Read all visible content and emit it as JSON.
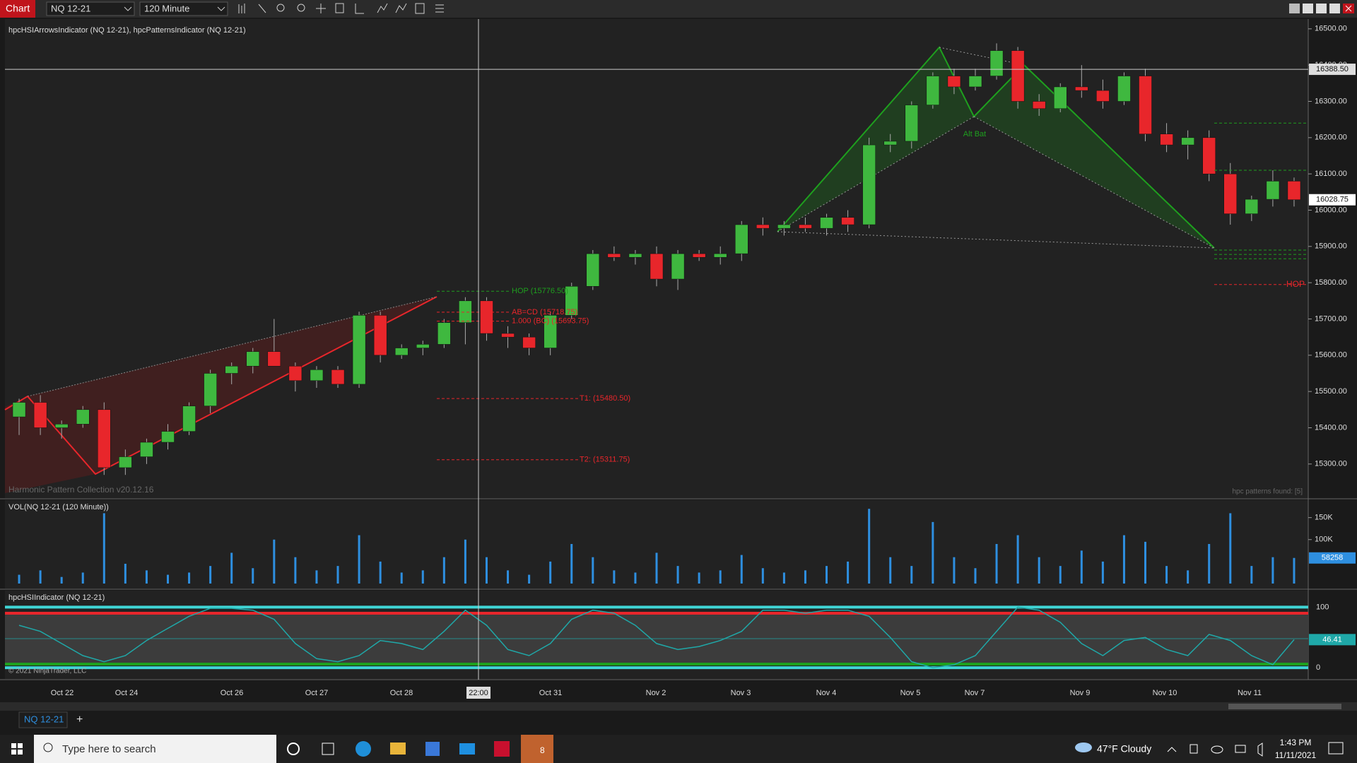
{
  "toolbar": {
    "title": "Chart",
    "instrument": "NQ 12-21",
    "interval": "120 Minute"
  },
  "price_panel": {
    "type": "candlestick",
    "title": "hpcHSIArrowsIndicator (NQ 12-21), hpcPatternsIndicator (NQ 12-21)",
    "up_color": "#3fb83f",
    "down_color": "#e8262b",
    "candles": [
      [
        15430,
        15480,
        15380,
        15470
      ],
      [
        15470,
        15490,
        15380,
        15400
      ],
      [
        15400,
        15420,
        15370,
        15410
      ],
      [
        15410,
        15460,
        15400,
        15450
      ],
      [
        15450,
        15470,
        15270,
        15290
      ],
      [
        15290,
        15340,
        15270,
        15320
      ],
      [
        15320,
        15370,
        15300,
        15360
      ],
      [
        15360,
        15410,
        15340,
        15390
      ],
      [
        15390,
        15470,
        15380,
        15460
      ],
      [
        15460,
        15560,
        15440,
        15550
      ],
      [
        15550,
        15580,
        15520,
        15570
      ],
      [
        15570,
        15620,
        15550,
        15610
      ],
      [
        15610,
        15700,
        15580,
        15570
      ],
      [
        15570,
        15580,
        15500,
        15530
      ],
      [
        15530,
        15570,
        15510,
        15560
      ],
      [
        15560,
        15570,
        15510,
        15520
      ],
      [
        15520,
        15720,
        15510,
        15710
      ],
      [
        15710,
        15720,
        15580,
        15600
      ],
      [
        15600,
        15630,
        15590,
        15620
      ],
      [
        15620,
        15640,
        15600,
        15630
      ],
      [
        15630,
        15700,
        15620,
        15690
      ],
      [
        15690,
        15760,
        15630,
        15750
      ],
      [
        15750,
        15760,
        15640,
        15660
      ],
      [
        15660,
        15680,
        15620,
        15650
      ],
      [
        15650,
        15660,
        15600,
        15620
      ],
      [
        15620,
        15720,
        15600,
        15710
      ],
      [
        15710,
        15800,
        15700,
        15790
      ],
      [
        15790,
        15890,
        15780,
        15880
      ],
      [
        15880,
        15900,
        15860,
        15870
      ],
      [
        15870,
        15890,
        15850,
        15880
      ],
      [
        15880,
        15900,
        15790,
        15810
      ],
      [
        15810,
        15890,
        15780,
        15880
      ],
      [
        15880,
        15890,
        15860,
        15870
      ],
      [
        15870,
        15900,
        15850,
        15880
      ],
      [
        15880,
        15970,
        15860,
        15960
      ],
      [
        15960,
        15980,
        15930,
        15950
      ],
      [
        15950,
        15970,
        15930,
        15960
      ],
      [
        15960,
        15980,
        15940,
        15950
      ],
      [
        15950,
        15990,
        15930,
        15980
      ],
      [
        15980,
        16000,
        15940,
        15960
      ],
      [
        15960,
        16200,
        15950,
        16180
      ],
      [
        16180,
        16210,
        16160,
        16190
      ],
      [
        16190,
        16300,
        16170,
        16290
      ],
      [
        16290,
        16380,
        16280,
        16370
      ],
      [
        16370,
        16390,
        16320,
        16340
      ],
      [
        16340,
        16390,
        16330,
        16370
      ],
      [
        16370,
        16460,
        16360,
        16440
      ],
      [
        16440,
        16450,
        16280,
        16300
      ],
      [
        16300,
        16320,
        16260,
        16280
      ],
      [
        16280,
        16350,
        16270,
        16340
      ],
      [
        16340,
        16400,
        16310,
        16330
      ],
      [
        16330,
        16360,
        16280,
        16300
      ],
      [
        16300,
        16380,
        16290,
        16370
      ],
      [
        16370,
        16390,
        16190,
        16210
      ],
      [
        16210,
        16240,
        16160,
        16180
      ],
      [
        16180,
        16220,
        16140,
        16200
      ],
      [
        16200,
        16220,
        16080,
        16100
      ],
      [
        16100,
        16130,
        15960,
        15990
      ],
      [
        15990,
        16040,
        15970,
        16030
      ],
      [
        16030,
        16110,
        16010,
        16080
      ],
      [
        16080,
        16090,
        16010,
        16028.75
      ]
    ],
    "ylim": [
      15210,
      16525
    ],
    "yticks": [
      {
        "value": 15300,
        "label": "15300.00"
      },
      {
        "value": 15400,
        "label": "15400.00"
      },
      {
        "value": 15500,
        "label": "15500.00"
      },
      {
        "value": 15600,
        "label": "15600.00"
      },
      {
        "value": 15700,
        "label": "15700.00"
      },
      {
        "value": 15800,
        "label": "15800.00"
      },
      {
        "value": 15900,
        "label": "15900.00"
      },
      {
        "value": 16000,
        "label": "16000.00"
      },
      {
        "value": 16100,
        "label": "16100.00"
      },
      {
        "value": 16200,
        "label": "16200.00"
      },
      {
        "value": 16300,
        "label": "16300.00"
      },
      {
        "value": 16400,
        "label": "16400.00"
      },
      {
        "value": 16500,
        "label": "16500.00"
      }
    ],
    "crosshair": {
      "value": 16388.5,
      "label": "16388.50"
    },
    "last": 16028.75,
    "levels": [
      {
        "label": "HOP (15776.50)",
        "value": 15776.5,
        "color": "#1e9e1e"
      },
      {
        "label": "AB=CD (15718.75)",
        "value": 15718.75,
        "color": "#e8262b"
      },
      {
        "label": "1.000 (BC) (15693.75)",
        "value": 15693.75,
        "color": "#e8262b"
      },
      {
        "label": "T1: (15480.50)",
        "value": 15480.5,
        "color": "#e8262b"
      },
      {
        "label": "T2: (15311.75)",
        "value": 15311.75,
        "color": "#e8262b"
      }
    ],
    "right_levels": [
      {
        "value": 16240,
        "color": "#1e9e1e"
      },
      {
        "value": 16110,
        "color": "#1e9e1e"
      },
      {
        "value": 15890,
        "color": "#1e9e1e"
      },
      {
        "value": 15878,
        "color": "#1e9e1e"
      },
      {
        "value": 15866,
        "color": "#1e9e1e"
      },
      {
        "value": 15795,
        "color": "#e8262b",
        "label": "HOP"
      }
    ],
    "pattern_name": "Alt Bat",
    "footer": "Harmonic Pattern Collection v20.12.16",
    "patterns_found": "hpc patterns found: [5]"
  },
  "volume_panel": {
    "type": "bar",
    "title": "VOL(NQ 12-21 (120 Minute))",
    "color": "#2e8fe0",
    "values": [
      20000,
      30000,
      15000,
      25000,
      160000,
      45000,
      30000,
      20000,
      25000,
      40000,
      70000,
      35000,
      100000,
      60000,
      30000,
      40000,
      110000,
      50000,
      25000,
      30000,
      60000,
      100000,
      60000,
      30000,
      20000,
      50000,
      90000,
      60000,
      30000,
      25000,
      70000,
      40000,
      25000,
      30000,
      65000,
      35000,
      25000,
      30000,
      40000,
      50000,
      170000,
      60000,
      40000,
      140000,
      60000,
      35000,
      90000,
      110000,
      60000,
      40000,
      75000,
      50000,
      110000,
      95000,
      40000,
      30000,
      90000,
      160000,
      40000,
      60000,
      58258
    ],
    "ylim": [
      0,
      180000
    ],
    "yticks": [
      {
        "value": 100000,
        "label": "100K"
      },
      {
        "value": 150000,
        "label": "150K"
      }
    ],
    "last": 58258
  },
  "oscillator_panel": {
    "type": "line",
    "title": "hpcHSIIndicator (NQ 12-21)",
    "color": "#1fa8a8",
    "values": [
      70,
      60,
      40,
      20,
      10,
      20,
      45,
      65,
      85,
      98,
      98,
      95,
      80,
      40,
      15,
      10,
      20,
      45,
      40,
      30,
      60,
      95,
      70,
      30,
      20,
      40,
      80,
      95,
      90,
      70,
      40,
      30,
      35,
      45,
      60,
      95,
      95,
      90,
      95,
      95,
      85,
      50,
      10,
      0,
      5,
      20,
      60,
      100,
      95,
      75,
      40,
      20,
      45,
      50,
      30,
      20,
      55,
      45,
      20,
      5,
      46.41
    ],
    "ylim": [
      -15,
      125
    ],
    "yticks": [
      0,
      100
    ],
    "upper_band": 90,
    "lower_band": 6,
    "last": 46.41,
    "copyright": "© 2021 NinjaTrader, LLC"
  },
  "x_axis": {
    "labels": [
      "Oct 22",
      "Oct 24",
      "Oct 26",
      "Oct 27",
      "Oct 28",
      "Oct 31",
      "Nov 2",
      "Nov 3",
      "Nov 4",
      "Nov 5",
      "Nov 7",
      "Nov 9",
      "Nov 10",
      "Nov 11"
    ],
    "crosshair_label": "22:00"
  },
  "tabs": {
    "active": "NQ 12-21",
    "add": "+"
  },
  "taskbar": {
    "search": "Type here to search",
    "weather": "47°F  Cloudy",
    "time": "1:43 PM",
    "date": "11/11/2021",
    "badge": "8"
  }
}
